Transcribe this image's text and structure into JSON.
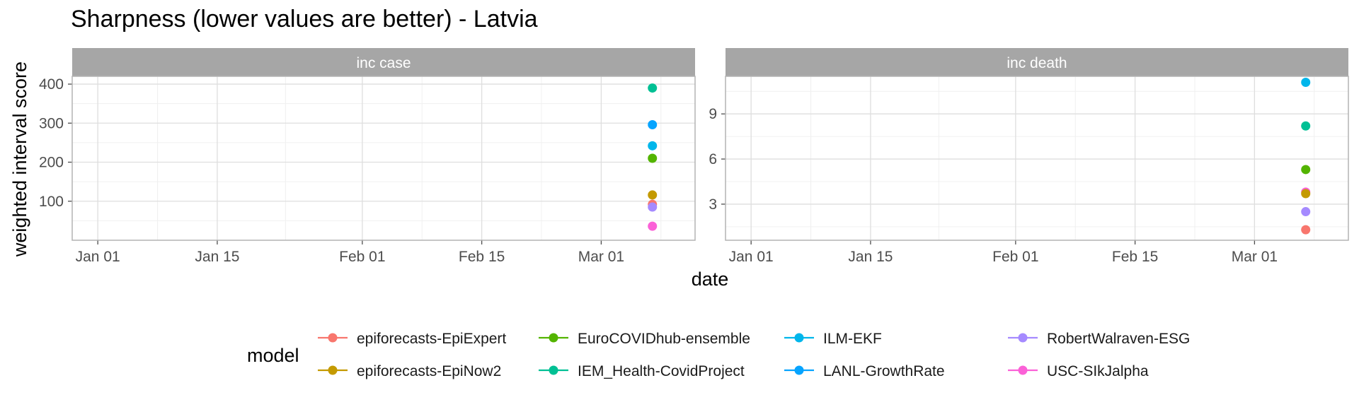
{
  "chart_data": {
    "type": "scatter",
    "title": "Sharpness (lower values are better) - Latvia",
    "xlabel": "date",
    "ylabel": "weighted interval score",
    "legend_title": "model",
    "legend_position": "bottom",
    "grid": true,
    "x_ticks": [
      "Jan 01",
      "Jan 15",
      "Feb 01",
      "Feb 15",
      "Mar 01"
    ],
    "x_range": [
      "2021-12-29",
      "2022-03-12"
    ],
    "series": [
      {
        "name": "epiforecasts-EpiExpert",
        "color": "#F8766D"
      },
      {
        "name": "epiforecasts-EpiNow2",
        "color": "#C49A00"
      },
      {
        "name": "EuroCOVIDhub-ensemble",
        "color": "#53B400"
      },
      {
        "name": "IEM_Health-CovidProject",
        "color": "#00C094"
      },
      {
        "name": "ILM-EKF",
        "color": "#00B6EB"
      },
      {
        "name": "LANL-GrowthRate",
        "color": "#06A4FF"
      },
      {
        "name": "RobertWalraven-ESG",
        "color": "#A58AFF"
      },
      {
        "name": "USC-SIkJalpha",
        "color": "#FB61D7"
      }
    ],
    "panels": [
      {
        "strip": "inc case",
        "y_ticks": [
          100,
          200,
          300,
          400
        ],
        "ylim": [
          0,
          420
        ],
        "points": [
          {
            "model": "IEM_Health-CovidProject",
            "date": "2022-03-07",
            "value": 390
          },
          {
            "model": "LANL-GrowthRate",
            "date": "2022-03-07",
            "value": 296
          },
          {
            "model": "ILM-EKF",
            "date": "2022-03-07",
            "value": 242
          },
          {
            "model": "EuroCOVIDhub-ensemble",
            "date": "2022-03-07",
            "value": 210
          },
          {
            "model": "epiforecasts-EpiNow2",
            "date": "2022-03-07",
            "value": 116
          },
          {
            "model": "epiforecasts-EpiExpert",
            "date": "2022-03-07",
            "value": 92
          },
          {
            "model": "RobertWalraven-ESG",
            "date": "2022-03-07",
            "value": 85
          },
          {
            "model": "USC-SIkJalpha",
            "date": "2022-03-07",
            "value": 36
          }
        ]
      },
      {
        "strip": "inc death",
        "y_ticks": [
          3,
          6,
          9
        ],
        "ylim": [
          0.6,
          11.5
        ],
        "points": [
          {
            "model": "ILM-EKF",
            "date": "2022-03-07",
            "value": 11.1
          },
          {
            "model": "IEM_Health-CovidProject",
            "date": "2022-03-07",
            "value": 8.2
          },
          {
            "model": "EuroCOVIDhub-ensemble",
            "date": "2022-03-07",
            "value": 5.3
          },
          {
            "model": "USC-SIkJalpha",
            "date": "2022-03-07",
            "value": 3.8
          },
          {
            "model": "epiforecasts-EpiNow2",
            "date": "2022-03-07",
            "value": 3.7
          },
          {
            "model": "RobertWalraven-ESG",
            "date": "2022-03-07",
            "value": 2.5
          },
          {
            "model": "epiforecasts-EpiExpert",
            "date": "2022-03-07",
            "value": 1.3
          }
        ]
      }
    ]
  }
}
